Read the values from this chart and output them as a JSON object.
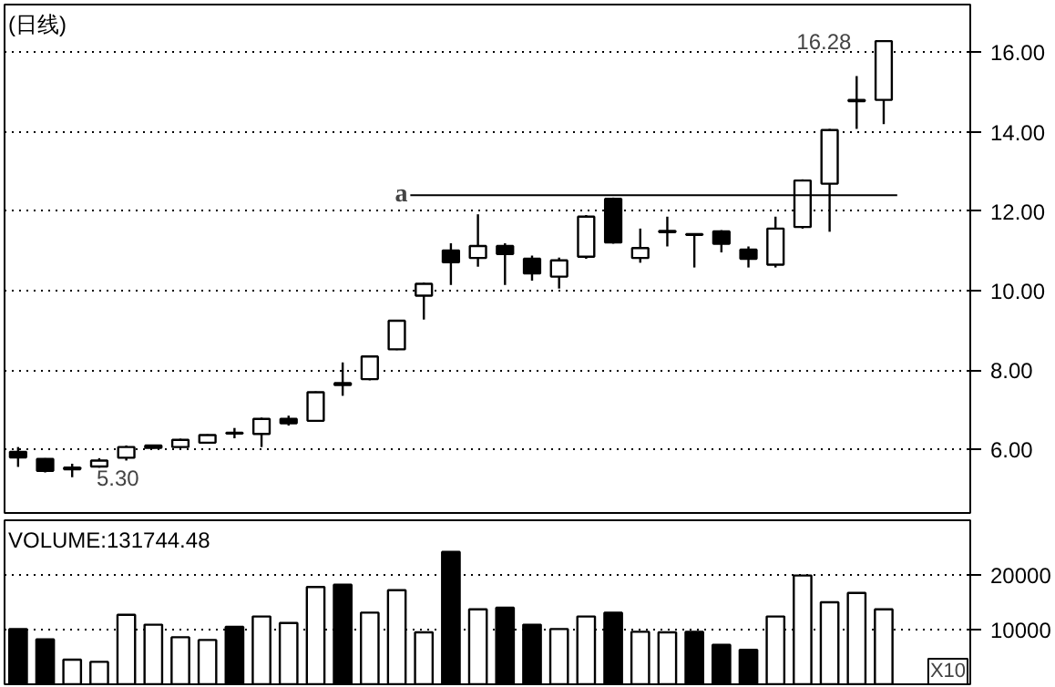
{
  "chart_data": [
    {
      "type": "candlestick",
      "title": "(日线)",
      "categories": [
        null,
        null,
        null,
        null,
        null,
        null,
        null,
        null,
        null,
        null,
        null,
        null,
        null,
        null,
        null,
        null,
        null,
        null,
        null,
        null,
        null,
        null,
        null,
        null,
        null,
        null,
        null,
        null,
        null,
        null,
        null,
        null,
        null
      ],
      "ohlc": [
        [
          5.94,
          6.06,
          5.56,
          5.8
        ],
        [
          5.76,
          5.78,
          5.42,
          5.46
        ],
        [
          5.54,
          5.64,
          5.3,
          5.5
        ],
        [
          5.57,
          5.78,
          5.54,
          5.72
        ],
        [
          5.79,
          6.1,
          5.72,
          6.06
        ],
        [
          6.1,
          6.12,
          6.02,
          6.04
        ],
        [
          6.06,
          6.27,
          6.03,
          6.24
        ],
        [
          6.17,
          6.38,
          6.15,
          6.36
        ],
        [
          6.4,
          6.54,
          6.28,
          6.42
        ],
        [
          6.39,
          6.8,
          6.06,
          6.77
        ],
        [
          6.77,
          6.85,
          6.6,
          6.66
        ],
        [
          6.72,
          7.46,
          6.7,
          7.44
        ],
        [
          7.62,
          8.19,
          7.35,
          7.67
        ],
        [
          7.77,
          8.36,
          7.74,
          8.34
        ],
        [
          8.52,
          9.26,
          8.5,
          9.24
        ],
        [
          9.87,
          10.2,
          9.27,
          10.17
        ],
        [
          11.01,
          11.19,
          10.14,
          10.71
        ],
        [
          10.82,
          11.92,
          10.6,
          11.12
        ],
        [
          11.12,
          11.19,
          10.14,
          10.92
        ],
        [
          10.8,
          10.88,
          10.25,
          10.43
        ],
        [
          10.35,
          10.83,
          10.05,
          10.76
        ],
        [
          10.85,
          11.9,
          10.8,
          11.86
        ],
        [
          12.31,
          12.34,
          11.18,
          11.21
        ],
        [
          10.82,
          11.56,
          10.7,
          11.07
        ],
        [
          11.5,
          11.86,
          11.11,
          11.47
        ],
        [
          11.42,
          11.44,
          10.58,
          11.4
        ],
        [
          11.49,
          11.52,
          10.96,
          11.18
        ],
        [
          11.03,
          11.11,
          10.58,
          10.8
        ],
        [
          10.65,
          11.86,
          10.58,
          11.56
        ],
        [
          11.6,
          12.8,
          11.56,
          12.77
        ],
        [
          12.69,
          14.07,
          11.48,
          14.04
        ],
        [
          14.77,
          15.4,
          14.07,
          14.8
        ],
        [
          14.8,
          16.28,
          14.19,
          16.28
        ]
      ],
      "ylim": [
        4.4,
        17.2
      ],
      "yticks": [
        {
          "value": 6,
          "label": "6.00"
        },
        {
          "value": 8,
          "label": "8.00"
        },
        {
          "value": 10,
          "label": "10.00"
        },
        {
          "value": 12,
          "label": "12.00"
        },
        {
          "value": 14,
          "label": "14.00"
        },
        {
          "value": 16,
          "label": "16.00"
        }
      ],
      "grid": "y",
      "tick_labels": "y",
      "ref_lines": [
        {
          "axis": "y",
          "value": 12.4,
          "label": "a"
        }
      ],
      "annotations": [
        "16.28",
        "5.30"
      ]
    },
    {
      "type": "bar",
      "title": "VOLUME:131744.48",
      "categories": [
        null,
        null,
        null,
        null,
        null,
        null,
        null,
        null,
        null,
        null,
        null,
        null,
        null,
        null,
        null,
        null,
        null,
        null,
        null,
        null,
        null,
        null,
        null,
        null,
        null,
        null,
        null,
        null,
        null,
        null,
        null,
        null,
        null
      ],
      "values": [
        10100,
        8200,
        4500,
        4100,
        12700,
        10900,
        8600,
        8100,
        10500,
        12400,
        11200,
        17800,
        18200,
        13100,
        17200,
        9500,
        24200,
        13700,
        14000,
        10900,
        10100,
        12400,
        13100,
        9600,
        9500,
        9600,
        7200,
        6300,
        12400,
        19900,
        15000,
        16700,
        13700
      ],
      "colors": [
        "#000000",
        "#000000",
        "#ffffff",
        "#ffffff",
        "#ffffff",
        "#ffffff",
        "#ffffff",
        "#ffffff",
        "#000000",
        "#ffffff",
        "#ffffff",
        "#ffffff",
        "#000000",
        "#ffffff",
        "#ffffff",
        "#ffffff",
        "#000000",
        "#ffffff",
        "#000000",
        "#000000",
        "#ffffff",
        "#ffffff",
        "#000000",
        "#ffffff",
        "#ffffff",
        "#000000",
        "#000000",
        "#000000",
        "#ffffff",
        "#ffffff",
        "#ffffff",
        "#ffffff",
        "#ffffff"
      ],
      "ylim": [
        0,
        30000
      ],
      "yticks": [
        10000,
        20000
      ],
      "grid": "y",
      "tick_labels": "y",
      "annotations": [
        "X10"
      ]
    }
  ]
}
